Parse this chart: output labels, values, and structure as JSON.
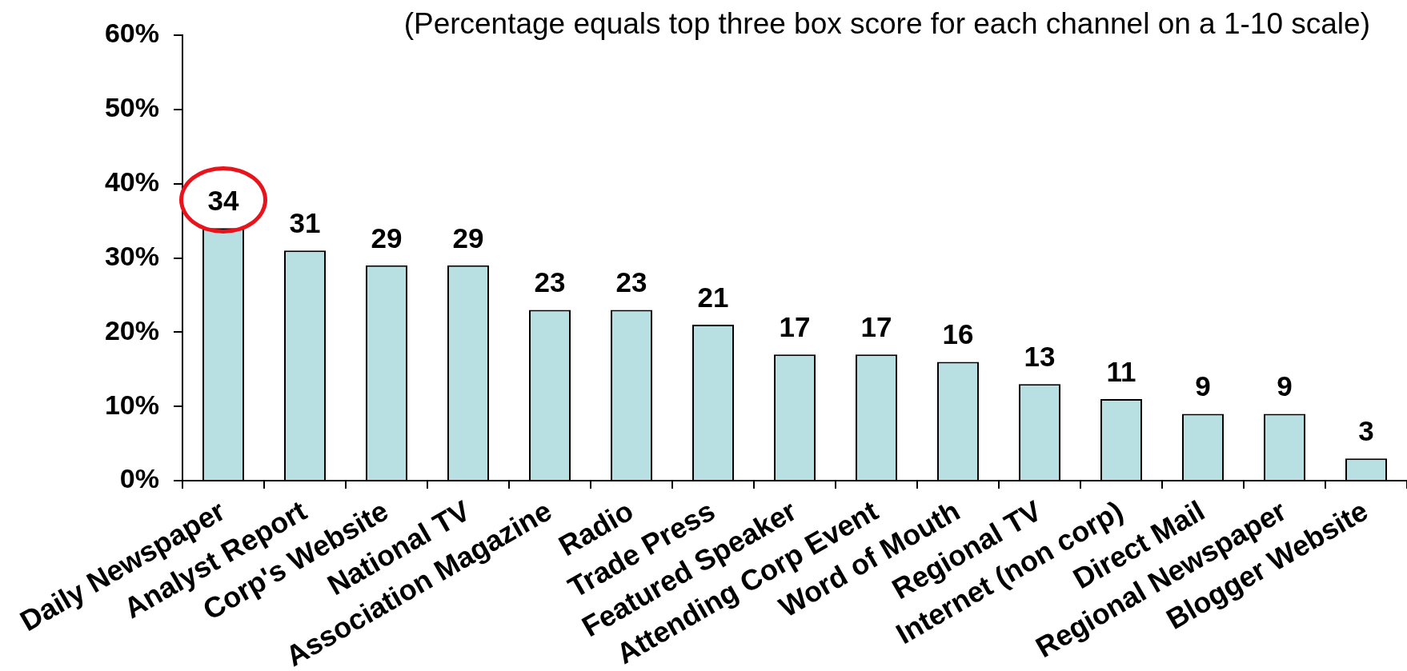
{
  "chart_data": {
    "type": "bar",
    "subtitle": "(Percentage equals top three box score for each channel on a 1-10 scale)",
    "categories": [
      "Daily Newspaper",
      "Analyst Report",
      "Corp's Website",
      "National TV",
      "Association Magazine",
      "Radio",
      "Trade Press",
      "Featured Speaker",
      "Attending Corp Event",
      "Word of Mouth",
      "Regional TV",
      "Internet (non corp)",
      "Direct Mail",
      "Regional Newspaper",
      "Blogger Website"
    ],
    "values": [
      34,
      31,
      29,
      29,
      23,
      23,
      21,
      17,
      17,
      16,
      13,
      11,
      9,
      9,
      3
    ],
    "color": "#b8dfe2",
    "ylim": [
      0,
      60
    ],
    "yticks": [
      {
        "value": 0,
        "label": "0%"
      },
      {
        "value": 10,
        "label": "10%"
      },
      {
        "value": 20,
        "label": "20%"
      },
      {
        "value": 30,
        "label": "30%"
      },
      {
        "value": 40,
        "label": "40%"
      },
      {
        "value": 50,
        "label": "50%"
      },
      {
        "value": 60,
        "label": "60%"
      }
    ],
    "data_labels": true
  }
}
